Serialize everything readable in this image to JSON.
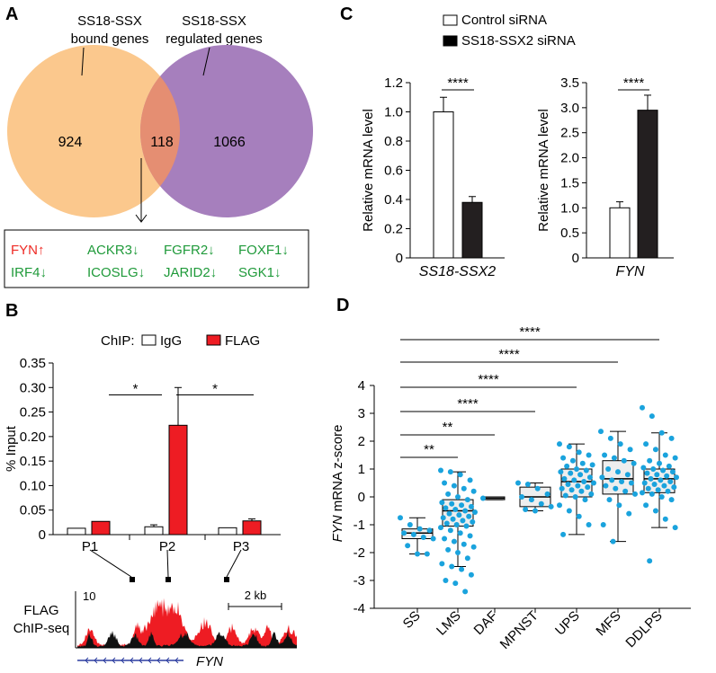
{
  "colors": {
    "venn_left": "#fbc88d",
    "venn_right": "#a67fbd",
    "venn_overlap": "#e58e72",
    "up_gene": "#ee2a24",
    "down_gene": "#1f9a3a",
    "flag_bar": "#ee1c23",
    "dot_blue": "#1aa3dd",
    "box_fill": "#eeeeee",
    "black_bar": "#231f20",
    "track_black": "#111111",
    "gene_blue": "#2c3da0"
  },
  "panel_labels": {
    "a": "A",
    "b": "B",
    "c": "C",
    "d": "D"
  },
  "panel_a": {
    "left_label_1": "SS18-SSX",
    "left_label_2": "bound genes",
    "right_label_1": "SS18-SSX",
    "right_label_2": "regulated genes",
    "left_count": "924",
    "overlap_count": "118",
    "right_count": "1066",
    "genes": [
      {
        "text": "FYN↑",
        "dir": "up"
      },
      {
        "text": "ACKR3↓",
        "dir": "down"
      },
      {
        "text": "FGFR2↓",
        "dir": "down"
      },
      {
        "text": "FOXF1↓",
        "dir": "down"
      },
      {
        "text": "IRF4↓",
        "dir": "down"
      },
      {
        "text": "ICOSLG↓",
        "dir": "down"
      },
      {
        "text": "JARID2↓",
        "dir": "down"
      },
      {
        "text": "SGK1↓",
        "dir": "down"
      }
    ]
  },
  "panel_b": {
    "chip_label": "ChIP:",
    "track_label_1": "FLAG",
    "track_label_2": "ChIP-seq",
    "track_scale": "10",
    "scale_bar": "2 kb",
    "gene_name": "FYN"
  },
  "panel_c": {
    "legend": [
      "Control siRNA",
      "SS18-SSX2 siRNA"
    ]
  },
  "panel_d": {
    "ylabel_italic": "FYN",
    "ylabel_rest": " mRNA z-score"
  },
  "chart_data": [
    {
      "id": "B",
      "type": "bar",
      "ylabel": "% Input",
      "categories": [
        "P1",
        "P2",
        "P3"
      ],
      "series": [
        {
          "name": "IgG",
          "values": [
            0.013,
            0.016,
            0.014
          ],
          "errors": [
            0.001,
            0.004,
            0.002
          ]
        },
        {
          "name": "FLAG",
          "values": [
            0.027,
            0.223,
            0.028
          ],
          "errors": [
            0.001,
            0.077,
            0.004
          ]
        }
      ],
      "ylim": [
        0,
        0.35
      ],
      "yticks": [
        "0",
        "0.05",
        "0.10",
        "0.15",
        "0.20",
        "0.25",
        "0.30",
        "0.35"
      ],
      "annotations": [
        {
          "from": "P1",
          "to": "P2",
          "text": "*"
        },
        {
          "from": "P2",
          "to": "P3",
          "text": "*"
        }
      ]
    },
    {
      "id": "C1",
      "type": "bar",
      "ylabel": "Relative mRNA level",
      "xlabel": "SS18-SSX2",
      "series": [
        {
          "name": "Control siRNA",
          "value": 1.0,
          "error": 0.1
        },
        {
          "name": "SS18-SSX2 siRNA",
          "value": 0.38,
          "error": 0.04
        }
      ],
      "ylim": [
        0,
        1.2
      ],
      "yticks": [
        "0",
        "0.2",
        "0.4",
        "0.6",
        "0.8",
        "1.0",
        "1.2"
      ],
      "annotation": "****"
    },
    {
      "id": "C2",
      "type": "bar",
      "ylabel": "Relative mRNA level",
      "xlabel": "FYN",
      "series": [
        {
          "name": "Control siRNA",
          "value": 1.0,
          "error": 0.12
        },
        {
          "name": "SS18-SSX2 siRNA",
          "value": 2.95,
          "error": 0.3
        }
      ],
      "ylim": [
        0,
        3.5
      ],
      "yticks": [
        "0",
        "0.5",
        "1.0",
        "1.5",
        "2.0",
        "2.5",
        "3.0",
        "3.5"
      ],
      "annotation": "****"
    },
    {
      "id": "D",
      "type": "box",
      "ylabel": "FYN mRNA z-score",
      "categories": [
        "SS",
        "LMS",
        "DAF",
        "MPNST",
        "UPS",
        "MFS",
        "DDLPS"
      ],
      "yticks": [
        "-4",
        "-3",
        "-2",
        "-1",
        "0",
        "1",
        "2",
        "3",
        "4"
      ],
      "ylim": [
        -4,
        4
      ],
      "boxes": [
        {
          "q1": -1.5,
          "median": -1.3,
          "q3": -1.15,
          "min": -2.05,
          "max": -0.75,
          "points": [
            -0.75,
            -1.0,
            -1.15,
            -1.2,
            -1.3,
            -1.35,
            -1.45,
            -1.5,
            -1.75,
            -2.05,
            -2.05
          ]
        },
        {
          "q1": -1.05,
          "median": -0.5,
          "q3": -0.1,
          "min": -2.5,
          "max": 0.9,
          "points": [
            0.95,
            0.9,
            0.8,
            0.6,
            0.5,
            0.4,
            0.3,
            0.2,
            0.1,
            0.0,
            -0.1,
            -0.2,
            -0.25,
            -0.3,
            -0.35,
            -0.4,
            -0.45,
            -0.5,
            -0.55,
            -0.6,
            -0.65,
            -0.7,
            -0.75,
            -0.8,
            -0.85,
            -0.9,
            -0.95,
            -1.0,
            -1.05,
            -1.1,
            -1.2,
            -1.3,
            -1.4,
            -1.5,
            -1.6,
            -1.7,
            -1.8,
            -1.9,
            -2.0,
            -2.2,
            -2.4,
            -2.5,
            -2.6,
            -2.8,
            -3.0,
            -3.1,
            -3.4
          ]
        },
        {
          "q1": -0.1,
          "median": -0.05,
          "q3": 0.0,
          "min": -0.1,
          "max": 0.0,
          "points": [
            -0.05
          ]
        },
        {
          "q1": -0.35,
          "median": 0.0,
          "q3": 0.35,
          "min": -0.5,
          "max": 0.5,
          "points": [
            0.5,
            0.45,
            0.3,
            0.1,
            0.0,
            -0.1,
            -0.25,
            -0.35,
            -0.45,
            -0.5
          ]
        },
        {
          "q1": 0.0,
          "median": 0.55,
          "q3": 1.0,
          "min": -1.35,
          "max": 1.9,
          "points": [
            1.9,
            1.8,
            1.6,
            1.5,
            1.4,
            1.3,
            1.2,
            1.15,
            1.1,
            1.0,
            0.95,
            0.9,
            0.85,
            0.8,
            0.7,
            0.65,
            0.6,
            0.55,
            0.5,
            0.45,
            0.4,
            0.35,
            0.3,
            0.25,
            0.2,
            0.1,
            0.05,
            0.0,
            -0.1,
            -0.3,
            -0.5,
            -0.7,
            -1.0,
            -1.35
          ]
        },
        {
          "q1": 0.1,
          "median": 0.65,
          "q3": 1.3,
          "min": -1.6,
          "max": 2.35,
          "points": [
            2.35,
            2.1,
            1.9,
            1.7,
            1.5,
            1.4,
            1.3,
            1.2,
            1.0,
            0.9,
            0.8,
            0.7,
            0.6,
            0.55,
            0.5,
            0.4,
            0.3,
            0.2,
            0.1,
            -0.1,
            -0.3,
            -0.6,
            -1.0,
            -1.6
          ]
        },
        {
          "q1": 0.15,
          "median": 0.65,
          "q3": 1.0,
          "min": -1.1,
          "max": 2.3,
          "points": [
            3.2,
            2.9,
            2.3,
            2.1,
            1.9,
            1.7,
            1.5,
            1.4,
            1.3,
            1.2,
            1.1,
            1.05,
            1.0,
            0.95,
            0.9,
            0.85,
            0.8,
            0.75,
            0.7,
            0.65,
            0.6,
            0.55,
            0.5,
            0.45,
            0.4,
            0.35,
            0.3,
            0.25,
            0.2,
            0.15,
            0.1,
            0.0,
            -0.1,
            -0.3,
            -0.5,
            -0.8,
            -1.1,
            -2.3
          ]
        }
      ],
      "comparisons": [
        {
          "from": "SS",
          "to": "LMS",
          "text": "**"
        },
        {
          "from": "SS",
          "to": "DAF",
          "text": "**"
        },
        {
          "from": "SS",
          "to": "MPNST",
          "text": "****"
        },
        {
          "from": "SS",
          "to": "UPS",
          "text": "****"
        },
        {
          "from": "SS",
          "to": "MFS",
          "text": "****"
        },
        {
          "from": "SS",
          "to": "DDLPS",
          "text": "****"
        }
      ]
    }
  ]
}
